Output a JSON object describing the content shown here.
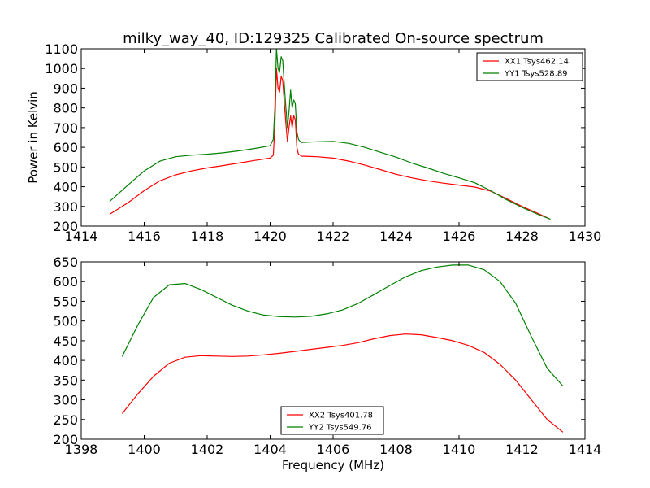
{
  "title": "milky_way_40, ID:129325 Calibrated On-source spectrum",
  "chart_data": [
    {
      "type": "line",
      "ylabel": "Power in Kelvin",
      "xlabel": "",
      "xlim": [
        1414,
        1430
      ],
      "ylim": [
        200,
        1100
      ],
      "xticks": [
        1414,
        1416,
        1418,
        1420,
        1422,
        1424,
        1426,
        1428,
        1430
      ],
      "yticks": [
        200,
        300,
        400,
        500,
        600,
        700,
        800,
        900,
        1000,
        1100
      ],
      "legend_position": "top-right",
      "series": [
        {
          "name": "XX1 Tsys462.14",
          "color": "#ff0000",
          "x": [
            1414.9,
            1415.5,
            1416.0,
            1416.5,
            1417.0,
            1417.5,
            1418.0,
            1418.5,
            1419.0,
            1419.5,
            1420.0,
            1420.1,
            1420.15,
            1420.2,
            1420.25,
            1420.3,
            1420.35,
            1420.4,
            1420.45,
            1420.5,
            1420.55,
            1420.6,
            1420.65,
            1420.7,
            1420.75,
            1420.8,
            1420.85,
            1420.9,
            1420.95,
            1421.0,
            1421.5,
            1422.0,
            1422.5,
            1423.0,
            1423.5,
            1424.0,
            1424.5,
            1425.0,
            1425.5,
            1426.0,
            1426.5,
            1427.0,
            1427.5,
            1428.0,
            1428.5,
            1428.9
          ],
          "y": [
            260,
            320,
            380,
            430,
            460,
            480,
            495,
            507,
            520,
            533,
            545,
            560,
            700,
            1000,
            900,
            880,
            960,
            940,
            830,
            720,
            630,
            700,
            760,
            700,
            760,
            740,
            600,
            565,
            560,
            555,
            552,
            545,
            530,
            510,
            487,
            463,
            445,
            430,
            418,
            408,
            398,
            378,
            340,
            300,
            265,
            235
          ]
        },
        {
          "name": "YY1 Tsys528.89",
          "color": "#008000",
          "x": [
            1414.9,
            1415.5,
            1416.0,
            1416.5,
            1417.0,
            1417.5,
            1418.0,
            1418.5,
            1419.0,
            1419.5,
            1420.0,
            1420.1,
            1420.15,
            1420.2,
            1420.25,
            1420.3,
            1420.35,
            1420.4,
            1420.45,
            1420.5,
            1420.55,
            1420.6,
            1420.65,
            1420.7,
            1420.75,
            1420.8,
            1420.85,
            1420.9,
            1420.95,
            1421.0,
            1421.5,
            1422.0,
            1422.5,
            1423.0,
            1423.5,
            1424.0,
            1424.5,
            1425.0,
            1425.5,
            1426.0,
            1426.5,
            1427.0,
            1427.5,
            1428.0,
            1428.5,
            1428.9
          ],
          "y": [
            325,
            410,
            480,
            530,
            552,
            560,
            565,
            572,
            582,
            594,
            608,
            640,
            800,
            1100,
            1000,
            980,
            1060,
            1040,
            920,
            800,
            700,
            780,
            890,
            800,
            840,
            820,
            680,
            640,
            630,
            625,
            628,
            630,
            620,
            600,
            575,
            550,
            520,
            495,
            468,
            445,
            420,
            380,
            335,
            295,
            260,
            235
          ]
        }
      ]
    },
    {
      "type": "line",
      "xlabel": "Frequency (MHz)",
      "ylabel": "",
      "xlim": [
        1398,
        1414
      ],
      "ylim": [
        200,
        650
      ],
      "xticks": [
        1398,
        1400,
        1402,
        1404,
        1406,
        1408,
        1410,
        1412,
        1414
      ],
      "yticks": [
        200,
        250,
        300,
        350,
        400,
        450,
        500,
        550,
        600,
        650
      ],
      "legend_position": "bottom-center",
      "series": [
        {
          "name": "XX2 Tsys401.78",
          "color": "#ff0000",
          "x": [
            1399.3,
            1399.8,
            1400.3,
            1400.8,
            1401.3,
            1401.8,
            1402.3,
            1402.8,
            1403.3,
            1403.8,
            1404.3,
            1404.8,
            1405.3,
            1405.8,
            1406.3,
            1406.8,
            1407.3,
            1407.8,
            1408.3,
            1408.8,
            1409.3,
            1409.8,
            1410.3,
            1410.8,
            1411.3,
            1411.8,
            1412.3,
            1412.8,
            1413.3
          ],
          "y": [
            265,
            315,
            360,
            393,
            408,
            412,
            411,
            410,
            411,
            414,
            418,
            423,
            428,
            433,
            438,
            445,
            455,
            463,
            467,
            465,
            458,
            450,
            438,
            420,
            390,
            350,
            300,
            250,
            218
          ]
        },
        {
          "name": "YY2 Tsys549.76",
          "color": "#008000",
          "x": [
            1399.3,
            1399.8,
            1400.3,
            1400.8,
            1401.3,
            1401.8,
            1402.3,
            1402.8,
            1403.3,
            1403.8,
            1404.3,
            1404.8,
            1405.3,
            1405.8,
            1406.3,
            1406.8,
            1407.3,
            1407.8,
            1408.3,
            1408.8,
            1409.3,
            1409.8,
            1410.3,
            1410.8,
            1411.3,
            1411.8,
            1412.3,
            1412.8,
            1413.3
          ],
          "y": [
            410,
            490,
            560,
            592,
            595,
            580,
            560,
            540,
            525,
            515,
            511,
            510,
            512,
            518,
            528,
            545,
            567,
            590,
            612,
            628,
            637,
            642,
            642,
            630,
            600,
            545,
            460,
            380,
            335
          ]
        }
      ]
    }
  ]
}
